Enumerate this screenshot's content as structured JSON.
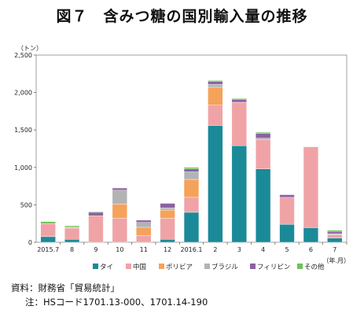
{
  "title": "図７　含みつ糖の国別輸入量の推移",
  "source": "資料：財務省「貿易統計」",
  "note": "注：HSコード1701.13-000、1701.14-190",
  "chart_data": {
    "type": "bar",
    "stacked": true,
    "title": "図７　含みつ糖の国別輸入量の推移",
    "ylabel": "（トン）",
    "xlabel": "（年.月）",
    "ylim": [
      0,
      2500
    ],
    "yticks": [
      "0",
      "500",
      "1,000",
      "1,500",
      "2,000",
      "2,500"
    ],
    "grid": false,
    "legend_position": "bottom",
    "categories": [
      "2015.7",
      "8",
      "9",
      "10",
      "11",
      "12",
      "2016.1",
      "2",
      "3",
      "4",
      "5",
      "6",
      "7"
    ],
    "series": [
      {
        "name": "タイ",
        "color": "#1a8a99",
        "values": [
          75,
          40,
          0,
          0,
          0,
          40,
          400,
          1560,
          1290,
          980,
          240,
          195,
          55
        ]
      },
      {
        "name": "中国",
        "color": "#f0a3a7",
        "values": [
          175,
          150,
          355,
          320,
          90,
          280,
          200,
          270,
          580,
          390,
          360,
          1080,
          45
        ]
      },
      {
        "name": "ボリビア",
        "color": "#f5a25a",
        "values": [
          0,
          0,
          0,
          190,
          110,
          110,
          240,
          240,
          0,
          0,
          0,
          0,
          0
        ]
      },
      {
        "name": "ブラジル",
        "color": "#b3b3b3",
        "values": [
          0,
          10,
          0,
          185,
          65,
          30,
          100,
          40,
          0,
          20,
          0,
          0,
          15
        ]
      },
      {
        "name": "フィリピン",
        "color": "#8a62a3",
        "values": [
          0,
          0,
          45,
          30,
          30,
          60,
          40,
          40,
          40,
          65,
          35,
          0,
          30
        ]
      },
      {
        "name": "その他",
        "color": "#6dc25a",
        "values": [
          25,
          20,
          10,
          5,
          0,
          5,
          20,
          10,
          10,
          15,
          0,
          0,
          15
        ]
      }
    ]
  }
}
